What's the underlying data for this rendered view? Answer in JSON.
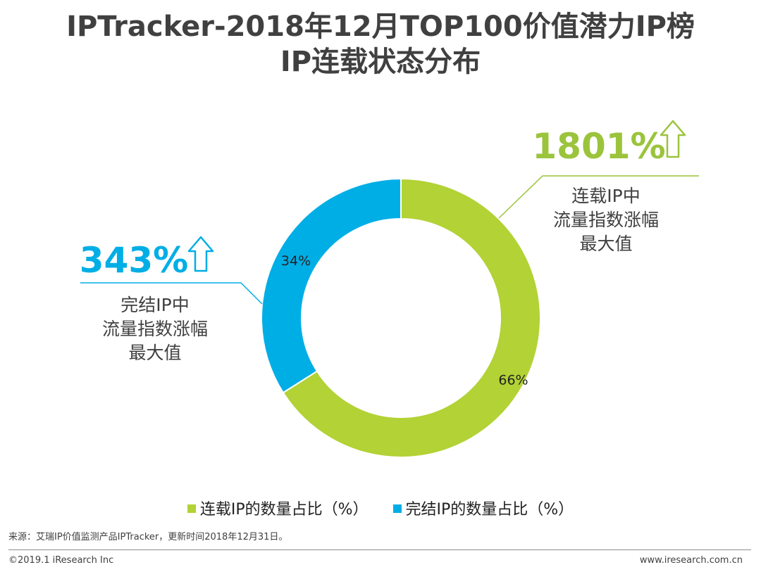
{
  "title_line1": "IPTracker-2018年12月TOP100价值潜力IP榜",
  "title_line2": "IP连载状态分布",
  "chart_data": {
    "type": "pie",
    "variant": "donut",
    "title": "IPTracker-2018年12月TOP100价值潜力IP榜 IP连载状态分布",
    "categories": [
      "连载IP的数量占比（%）",
      "完结IP的数量占比（%）"
    ],
    "values": [
      66,
      34
    ],
    "value_labels": [
      "66%",
      "34%"
    ],
    "colors": [
      "#b2d235",
      "#00aee6"
    ],
    "legend_position": "bottom"
  },
  "callouts": {
    "right": {
      "value": "1801%",
      "lines": [
        "连载IP中",
        "流量指数涨幅",
        "最大值"
      ],
      "color": "#9bc43c"
    },
    "left": {
      "value": "343%",
      "lines": [
        "完结IP中",
        "流量指数涨幅",
        "最大值"
      ],
      "color": "#00aee6"
    }
  },
  "legend": {
    "items": [
      {
        "label": "连载IP的数量占比（%）",
        "color": "#b2d235"
      },
      {
        "label": "完结IP的数量占比（%）",
        "color": "#00aee6"
      }
    ]
  },
  "footer": {
    "source": "来源：艾瑞IP价值监测产品IPTracker，更新时间2018年12月31日。",
    "copyright": "©2019.1 iResearch Inc",
    "website": "www.iresearch.com.cn"
  }
}
